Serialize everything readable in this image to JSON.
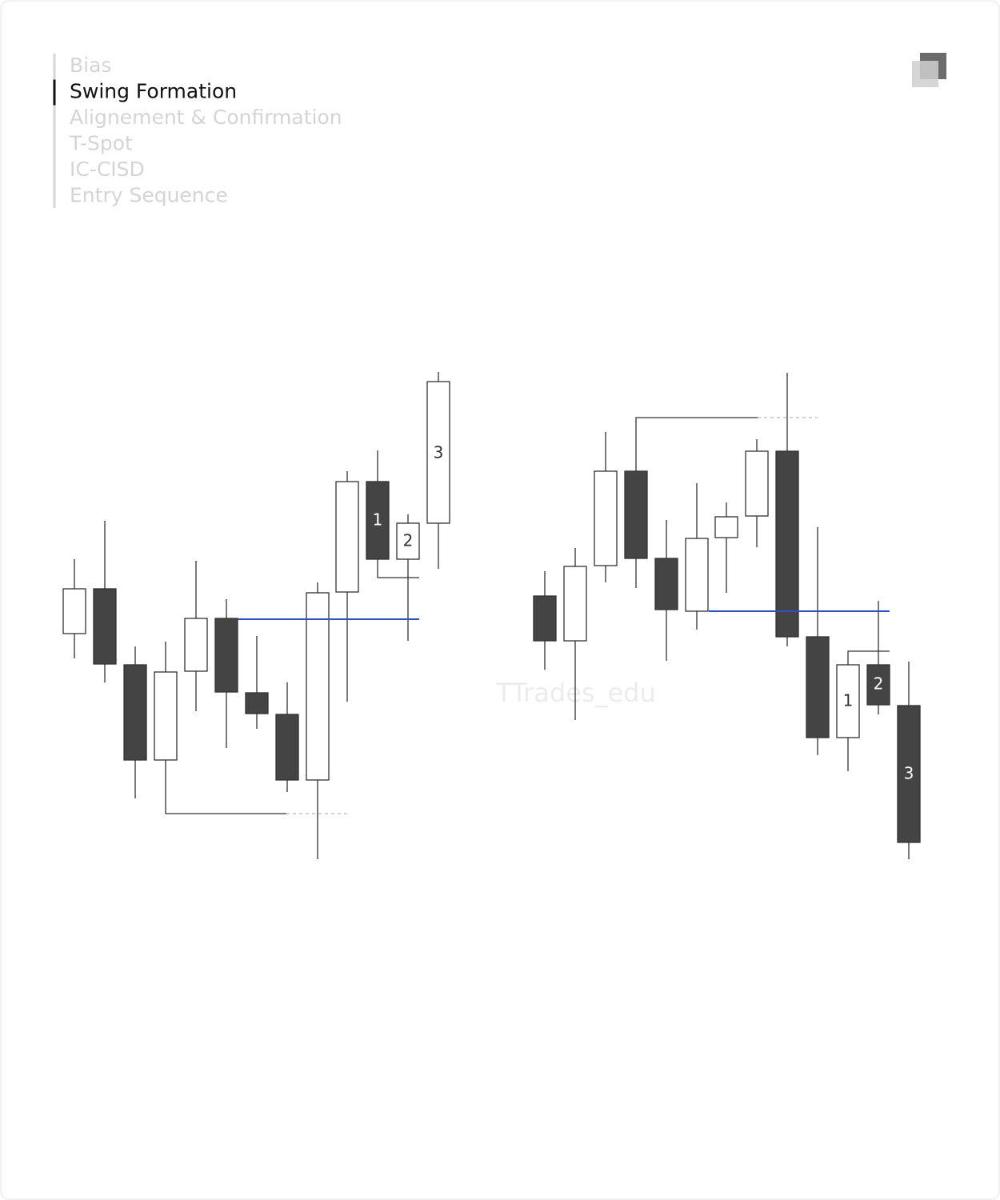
{
  "nav": {
    "items": [
      "Bias",
      "Swing Formation",
      "Alignement & Confirmation",
      "T-Spot",
      "IC-CISD",
      "Entry Sequence"
    ],
    "active": 1
  },
  "watermark": "TTrades_edu",
  "left_labels": [
    "1",
    "2",
    "3"
  ],
  "right_labels": [
    "1",
    "2",
    "3"
  ]
}
